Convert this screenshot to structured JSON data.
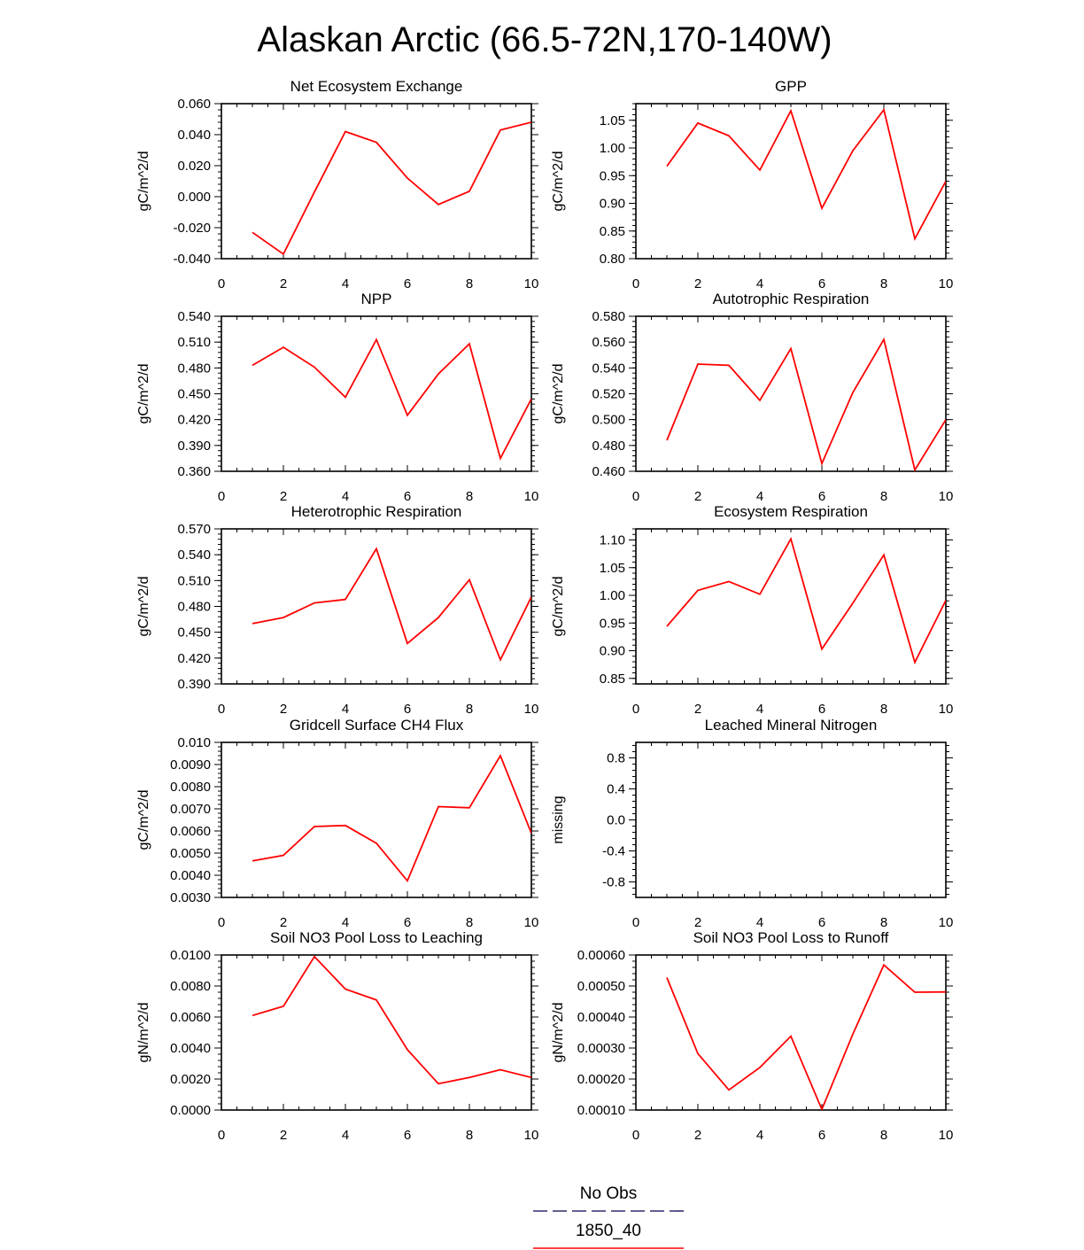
{
  "figure": {
    "title": "Alaskan Arctic (66.5-72N,170-140W)"
  },
  "legend": {
    "entries": [
      {
        "label": "No Obs",
        "style": "dashed",
        "color": "#2e2e6e"
      },
      {
        "label": "1850_40",
        "style": "solid",
        "color": "#ff0000"
      }
    ]
  },
  "chart_data": [
    {
      "type": "line",
      "title": "Net Ecosystem Exchange",
      "ylabel": "gC/m^2/d",
      "xlim": [
        0,
        10
      ],
      "ylim": [
        -0.04,
        0.06
      ],
      "xticks": [
        "0",
        "2",
        "4",
        "6",
        "8",
        "10"
      ],
      "yticks": [
        "-0.040",
        "-0.020",
        "0.000",
        "0.020",
        "0.040",
        "0.060"
      ],
      "series": [
        {
          "color": "#ff0000",
          "x": [
            1,
            2,
            3,
            4,
            5,
            6,
            7,
            8,
            9,
            10
          ],
          "values": [
            -0.023,
            -0.037,
            0.003,
            0.042,
            0.035,
            0.012,
            -0.005,
            0.0035,
            0.043,
            0.048
          ]
        }
      ]
    },
    {
      "type": "line",
      "title": "GPP",
      "ylabel": "gC/m^2/d",
      "xlim": [
        0,
        10
      ],
      "ylim": [
        0.8,
        1.08
      ],
      "xticks": [
        "0",
        "2",
        "4",
        "6",
        "8",
        "10"
      ],
      "yticks": [
        "0.80",
        "0.85",
        "0.90",
        "0.95",
        "1.00",
        "1.05"
      ],
      "series": [
        {
          "color": "#ff0000",
          "x": [
            1,
            2,
            3,
            4,
            5,
            6,
            7,
            8,
            9,
            10
          ],
          "values": [
            0.967,
            1.045,
            1.022,
            0.96,
            1.067,
            0.891,
            0.995,
            1.069,
            0.836,
            0.94
          ]
        }
      ]
    },
    {
      "type": "line",
      "title": "NPP",
      "ylabel": "gC/m^2/d",
      "xlim": [
        0,
        10
      ],
      "ylim": [
        0.36,
        0.54
      ],
      "xticks": [
        "0",
        "2",
        "4",
        "6",
        "8",
        "10"
      ],
      "yticks": [
        "0.360",
        "0.390",
        "0.420",
        "0.450",
        "0.480",
        "0.510",
        "0.540"
      ],
      "series": [
        {
          "color": "#ff0000",
          "x": [
            1,
            2,
            3,
            4,
            5,
            6,
            7,
            8,
            9,
            10
          ],
          "values": [
            0.483,
            0.504,
            0.481,
            0.446,
            0.513,
            0.425,
            0.473,
            0.508,
            0.375,
            0.444
          ]
        }
      ]
    },
    {
      "type": "line",
      "title": "Autotrophic Respiration",
      "ylabel": "gC/m^2/d",
      "xlim": [
        0,
        10
      ],
      "ylim": [
        0.46,
        0.58
      ],
      "xticks": [
        "0",
        "2",
        "4",
        "6",
        "8",
        "10"
      ],
      "yticks": [
        "0.460",
        "0.480",
        "0.500",
        "0.520",
        "0.540",
        "0.560",
        "0.580"
      ],
      "series": [
        {
          "color": "#ff0000",
          "x": [
            1,
            2,
            3,
            4,
            5,
            6,
            7,
            8,
            9,
            10
          ],
          "values": [
            0.484,
            0.543,
            0.542,
            0.515,
            0.555,
            0.466,
            0.521,
            0.562,
            0.461,
            0.5
          ]
        }
      ]
    },
    {
      "type": "line",
      "title": "Heterotrophic Respiration",
      "ylabel": "gC/m^2/d",
      "xlim": [
        0,
        10
      ],
      "ylim": [
        0.39,
        0.57
      ],
      "xticks": [
        "0",
        "2",
        "4",
        "6",
        "8",
        "10"
      ],
      "yticks": [
        "0.390",
        "0.420",
        "0.450",
        "0.480",
        "0.510",
        "0.540",
        "0.570"
      ],
      "series": [
        {
          "color": "#ff0000",
          "x": [
            1,
            2,
            3,
            4,
            5,
            6,
            7,
            8,
            9,
            10
          ],
          "values": [
            0.46,
            0.467,
            0.484,
            0.488,
            0.547,
            0.437,
            0.467,
            0.511,
            0.418,
            0.491
          ]
        }
      ]
    },
    {
      "type": "line",
      "title": "Ecosystem Respiration",
      "ylabel": "gC/m^2/d",
      "xlim": [
        0,
        10
      ],
      "ylim": [
        0.84,
        1.12
      ],
      "xticks": [
        "0",
        "2",
        "4",
        "6",
        "8",
        "10"
      ],
      "yticks": [
        "0.85",
        "0.90",
        "0.95",
        "1.00",
        "1.05",
        "1.10"
      ],
      "series": [
        {
          "color": "#ff0000",
          "x": [
            1,
            2,
            3,
            4,
            5,
            6,
            7,
            8,
            9,
            10
          ],
          "values": [
            0.944,
            1.009,
            1.025,
            1.002,
            1.102,
            0.903,
            0.986,
            1.073,
            0.879,
            0.991
          ]
        }
      ]
    },
    {
      "type": "line",
      "title": "Gridcell Surface CH4 Flux",
      "ylabel": "gC/m^2/d",
      "xlim": [
        0,
        10
      ],
      "ylim": [
        0.003,
        0.01
      ],
      "xticks": [
        "0",
        "2",
        "4",
        "6",
        "8",
        "10"
      ],
      "yticks": [
        "0.0030",
        "0.0040",
        "0.0050",
        "0.0060",
        "0.0070",
        "0.0080",
        "0.0090",
        "0.010"
      ],
      "series": [
        {
          "color": "#ff0000",
          "x": [
            1,
            2,
            3,
            4,
            5,
            6,
            7,
            8,
            9,
            10
          ],
          "values": [
            0.00465,
            0.0049,
            0.0062,
            0.00625,
            0.00545,
            0.00375,
            0.0071,
            0.00705,
            0.0094,
            0.0059
          ]
        }
      ]
    },
    {
      "type": "line",
      "title": "Leached Mineral Nitrogen",
      "ylabel": "missing",
      "xlim": [
        0,
        10
      ],
      "ylim": [
        -1.0,
        1.0
      ],
      "xticks": [
        "0",
        "2",
        "4",
        "6",
        "8",
        "10"
      ],
      "yticks": [
        "-0.8",
        "-0.4",
        "0.0",
        "0.4",
        "0.8"
      ],
      "series": []
    },
    {
      "type": "line",
      "title": "Soil NO3 Pool Loss to Leaching",
      "ylabel": "gN/m^2/d",
      "xlim": [
        0,
        10
      ],
      "ylim": [
        0,
        0.01
      ],
      "xticks": [
        "0",
        "2",
        "4",
        "6",
        "8",
        "10"
      ],
      "yticks": [
        "0.0000",
        "0.0020",
        "0.0040",
        "0.0060",
        "0.0080",
        "0.0100"
      ],
      "series": [
        {
          "color": "#ff0000",
          "x": [
            1,
            2,
            3,
            4,
            5,
            6,
            7,
            8,
            9,
            10
          ],
          "values": [
            0.0061,
            0.0067,
            0.0099,
            0.0078,
            0.0071,
            0.0039,
            0.0017,
            0.0021,
            0.0026,
            0.0021
          ]
        }
      ]
    },
    {
      "type": "line",
      "title": "Soil NO3 Pool Loss to Runoff",
      "ylabel": "gN/m^2/d",
      "xlim": [
        0,
        10
      ],
      "ylim": [
        0.0001,
        0.0006
      ],
      "xticks": [
        "0",
        "2",
        "4",
        "6",
        "8",
        "10"
      ],
      "yticks": [
        "0.00010",
        "0.00020",
        "0.00030",
        "0.00040",
        "0.00050",
        "0.00060"
      ],
      "series": [
        {
          "color": "#ff0000",
          "x": [
            1,
            2,
            3,
            4,
            5,
            6,
            7,
            8,
            9,
            10
          ],
          "values": [
            0.000527,
            0.000282,
            0.000165,
            0.000237,
            0.000338,
            0.000102,
            0.000345,
            0.000568,
            0.00048,
            0.000481
          ]
        }
      ]
    }
  ]
}
